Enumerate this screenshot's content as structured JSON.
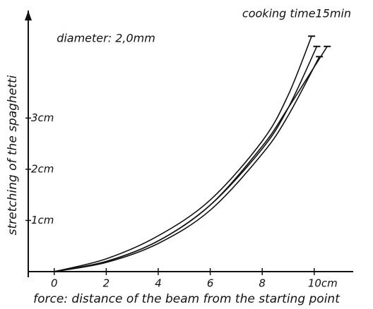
{
  "chart_data": {
    "type": "line",
    "title": "cooking time15min",
    "annotation": "diameter: 2,0mm",
    "xlabel": "force: distance of the beam from the starting point",
    "ylabel": "stretching of the spaghetti",
    "xlim": [
      -1,
      11.5
    ],
    "ylim": [
      0,
      5.1
    ],
    "xticks": [
      0,
      2,
      4,
      6,
      8,
      {
        "value": 10,
        "label": "10cm"
      }
    ],
    "yticks": [
      {
        "value": 1,
        "label": "1cm"
      },
      {
        "value": 2,
        "label": "2cm"
      },
      {
        "value": 3,
        "label": "3cm"
      }
    ],
    "color": "#111",
    "series": [
      {
        "x": [
          0,
          2,
          4,
          6,
          8,
          9,
          9.9
        ],
        "values": [
          0,
          0.25,
          0.7,
          1.4,
          2.55,
          3.45,
          4.6
        ]
      },
      {
        "x": [
          0,
          2,
          4,
          6,
          8,
          9,
          10.1
        ],
        "values": [
          0,
          0.2,
          0.6,
          1.3,
          2.4,
          3.2,
          4.4
        ]
      },
      {
        "x": [
          0,
          2,
          4,
          6,
          8,
          9,
          10.2
        ],
        "values": [
          0,
          0.18,
          0.55,
          1.2,
          2.3,
          3.05,
          4.2
        ]
      },
      {
        "x": [
          0,
          2,
          4,
          6,
          8,
          9,
          10.5
        ],
        "values": [
          0,
          0.2,
          0.6,
          1.3,
          2.45,
          3.2,
          4.4
        ]
      }
    ]
  }
}
